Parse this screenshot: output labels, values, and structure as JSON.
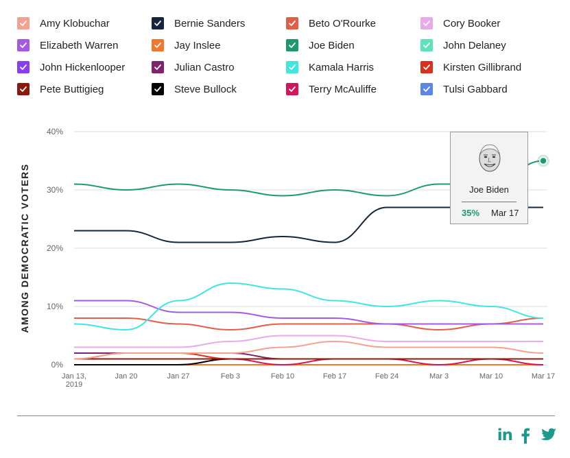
{
  "legend": [
    {
      "name": "Amy Klobuchar",
      "color": "#f4a191"
    },
    {
      "name": "Bernie Sanders",
      "color": "#14253d"
    },
    {
      "name": "Beto O'Rourke",
      "color": "#e25d4a"
    },
    {
      "name": "Cory Booker",
      "color": "#e9aaea"
    },
    {
      "name": "Elizabeth Warren",
      "color": "#a35ae0"
    },
    {
      "name": "Jay Inslee",
      "color": "#f4762b"
    },
    {
      "name": "Joe Biden",
      "color": "#1d9a6c"
    },
    {
      "name": "John Delaney",
      "color": "#5ee2bb"
    },
    {
      "name": "John Hickenlooper",
      "color": "#8a3ef2"
    },
    {
      "name": "Julian Castro",
      "color": "#7d2370"
    },
    {
      "name": "Kamala Harris",
      "color": "#3fe6e0"
    },
    {
      "name": "Kirsten Gillibrand",
      "color": "#d8321e"
    },
    {
      "name": "Pete Buttigieg",
      "color": "#8b1a0c"
    },
    {
      "name": "Steve Bullock",
      "color": "#050505"
    },
    {
      "name": "Terry McAuliffe",
      "color": "#d3155a"
    },
    {
      "name": "Tulsi Gabbard",
      "color": "#5a86e8"
    }
  ],
  "tooltip": {
    "candidate": "Joe Biden",
    "value": "35%",
    "date": "Mar 17",
    "value_color": "#1a9a6c"
  },
  "social": {
    "linkedin": "in"
  },
  "chart_data": {
    "type": "line",
    "title": "",
    "ylabel": "AMONG DEMOCRATIC VOTERS",
    "xlabel": "",
    "ylim": [
      0,
      40
    ],
    "yticks": [
      0,
      10,
      20,
      30,
      40
    ],
    "ytick_labels": [
      "0%",
      "10%",
      "20%",
      "30%",
      "40%"
    ],
    "x": [
      "Jan 13, 2019",
      "Jan 20",
      "Jan 27",
      "Feb 3",
      "Feb 10",
      "Feb 17",
      "Feb 24",
      "Mar 3",
      "Mar 10",
      "Mar 17"
    ],
    "xtick_labels": [
      [
        "Jan 13,",
        "2019"
      ],
      [
        "Jan 20"
      ],
      [
        "Jan 27"
      ],
      [
        "Feb 3"
      ],
      [
        "Feb 10"
      ],
      [
        "Feb 17"
      ],
      [
        "Feb 24"
      ],
      [
        "Mar 3"
      ],
      [
        "Mar 10"
      ],
      [
        "Mar 17"
      ]
    ],
    "series": [
      {
        "name": "Joe Biden",
        "color": "#1d9a6c",
        "values": [
          31,
          30,
          31,
          30,
          29,
          30,
          29,
          31,
          31,
          35
        ]
      },
      {
        "name": "Bernie Sanders",
        "color": "#14253d",
        "values": [
          23,
          23,
          21,
          21,
          22,
          21,
          27,
          27,
          27,
          27
        ]
      },
      {
        "name": "Kamala Harris",
        "color": "#3fe6e0",
        "values": [
          7,
          6,
          11,
          14,
          13,
          11,
          10,
          11,
          10,
          8
        ]
      },
      {
        "name": "Elizabeth Warren",
        "color": "#a35ae0",
        "values": [
          11,
          11,
          9,
          9,
          8,
          8,
          7,
          7,
          7,
          7
        ]
      },
      {
        "name": "Beto O'Rourke",
        "color": "#e25d4a",
        "values": [
          8,
          8,
          7,
          6,
          7,
          7,
          7,
          6,
          7,
          8
        ]
      },
      {
        "name": "Cory Booker",
        "color": "#e9aaea",
        "values": [
          3,
          3,
          3,
          4,
          5,
          5,
          4,
          4,
          4,
          4
        ]
      },
      {
        "name": "Amy Klobuchar",
        "color": "#f4a191",
        "values": [
          1,
          2,
          2,
          2,
          3,
          4,
          3,
          3,
          3,
          2
        ]
      },
      {
        "name": "Pete Buttigieg",
        "color": "#8b1a0c",
        "values": [
          1,
          1,
          1,
          1,
          1,
          1,
          1,
          1,
          1,
          1
        ]
      },
      {
        "name": "Julian Castro",
        "color": "#7d2370",
        "values": [
          2,
          2,
          2,
          2,
          1,
          1,
          1,
          1,
          1,
          1
        ]
      },
      {
        "name": "Kirsten Gillibrand",
        "color": "#d8321e",
        "values": [
          1,
          2,
          2,
          1,
          1,
          1,
          1,
          1,
          1,
          1
        ]
      },
      {
        "name": "Terry McAuliffe",
        "color": "#d3155a",
        "values": [
          1,
          1,
          1,
          1,
          0,
          1,
          1,
          0,
          1,
          0
        ]
      },
      {
        "name": "Tulsi Gabbard",
        "color": "#5a86e8",
        "values": [
          1,
          1,
          1,
          1,
          1,
          1,
          1,
          1,
          1,
          1
        ]
      },
      {
        "name": "Steve Bullock",
        "color": "#050505",
        "values": [
          0,
          0,
          0,
          1,
          1,
          1,
          1,
          1,
          1,
          1
        ]
      },
      {
        "name": "John Hickenlooper",
        "color": "#8a3ef2",
        "values": [
          0,
          0,
          0,
          1,
          1,
          1,
          1,
          1,
          1,
          1
        ]
      },
      {
        "name": "Jay Inslee",
        "color": "#f4762b",
        "values": [
          0,
          0,
          0,
          0,
          0,
          0,
          0,
          0,
          0,
          0
        ]
      },
      {
        "name": "John Delaney",
        "color": "#5ee2bb",
        "values": [
          0,
          0,
          0,
          0,
          0,
          0,
          0,
          0,
          0,
          0
        ]
      }
    ],
    "highlight": {
      "series": "Joe Biden",
      "x": "Mar 17",
      "value": 35
    }
  }
}
